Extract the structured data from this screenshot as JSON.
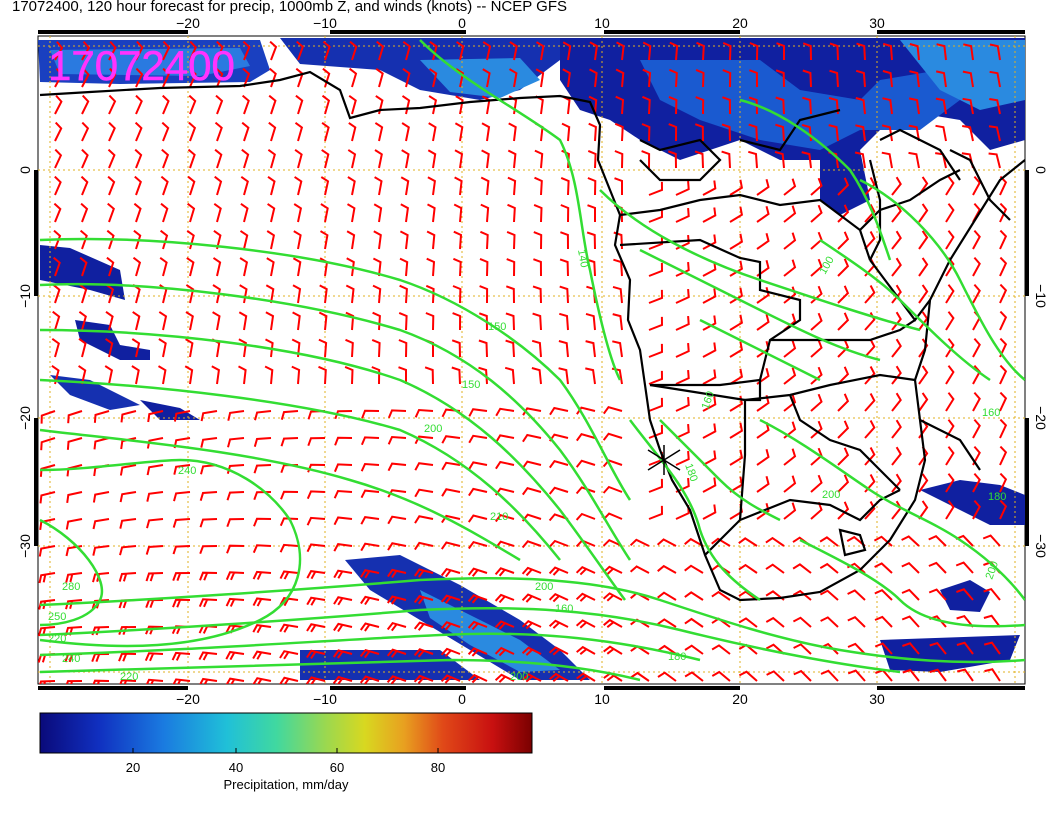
{
  "title": "17072400, 120 hour forecast for precip, 1000mb Z, and winds (knots) -- NCEP GFS",
  "stamp": "17072400",
  "map": {
    "lon_range": [
      -30,
      40
    ],
    "lat_range": [
      -40,
      10
    ],
    "lon_ticks": [
      "−20",
      "−10",
      "0",
      "10",
      "20",
      "30"
    ],
    "lat_ticks": [
      "0",
      "−10",
      "−20",
      "−30"
    ],
    "contour_color": "#33dd33",
    "barb_color": "#ff0000",
    "grid_color": "#e0b020",
    "coast_color": "#000000",
    "contour_labels": [
      "140",
      "150",
      "150",
      "160",
      "180",
      "200",
      "200",
      "210",
      "240",
      "280",
      "250",
      "220",
      "240",
      "220",
      "200",
      "180",
      "160",
      "100",
      "200",
      "160",
      "180",
      "200"
    ]
  },
  "colorbar": {
    "ticks": [
      "20",
      "40",
      "60",
      "80"
    ],
    "range": [
      0,
      100
    ],
    "label": "Precipitation, mm/day",
    "colors": [
      "#0a0a7a",
      "#1030c0",
      "#1a7ae0",
      "#20c0d8",
      "#40d8a0",
      "#9ad850",
      "#d8d820",
      "#e8a020",
      "#e04818",
      "#c81010",
      "#7a0000"
    ]
  }
}
